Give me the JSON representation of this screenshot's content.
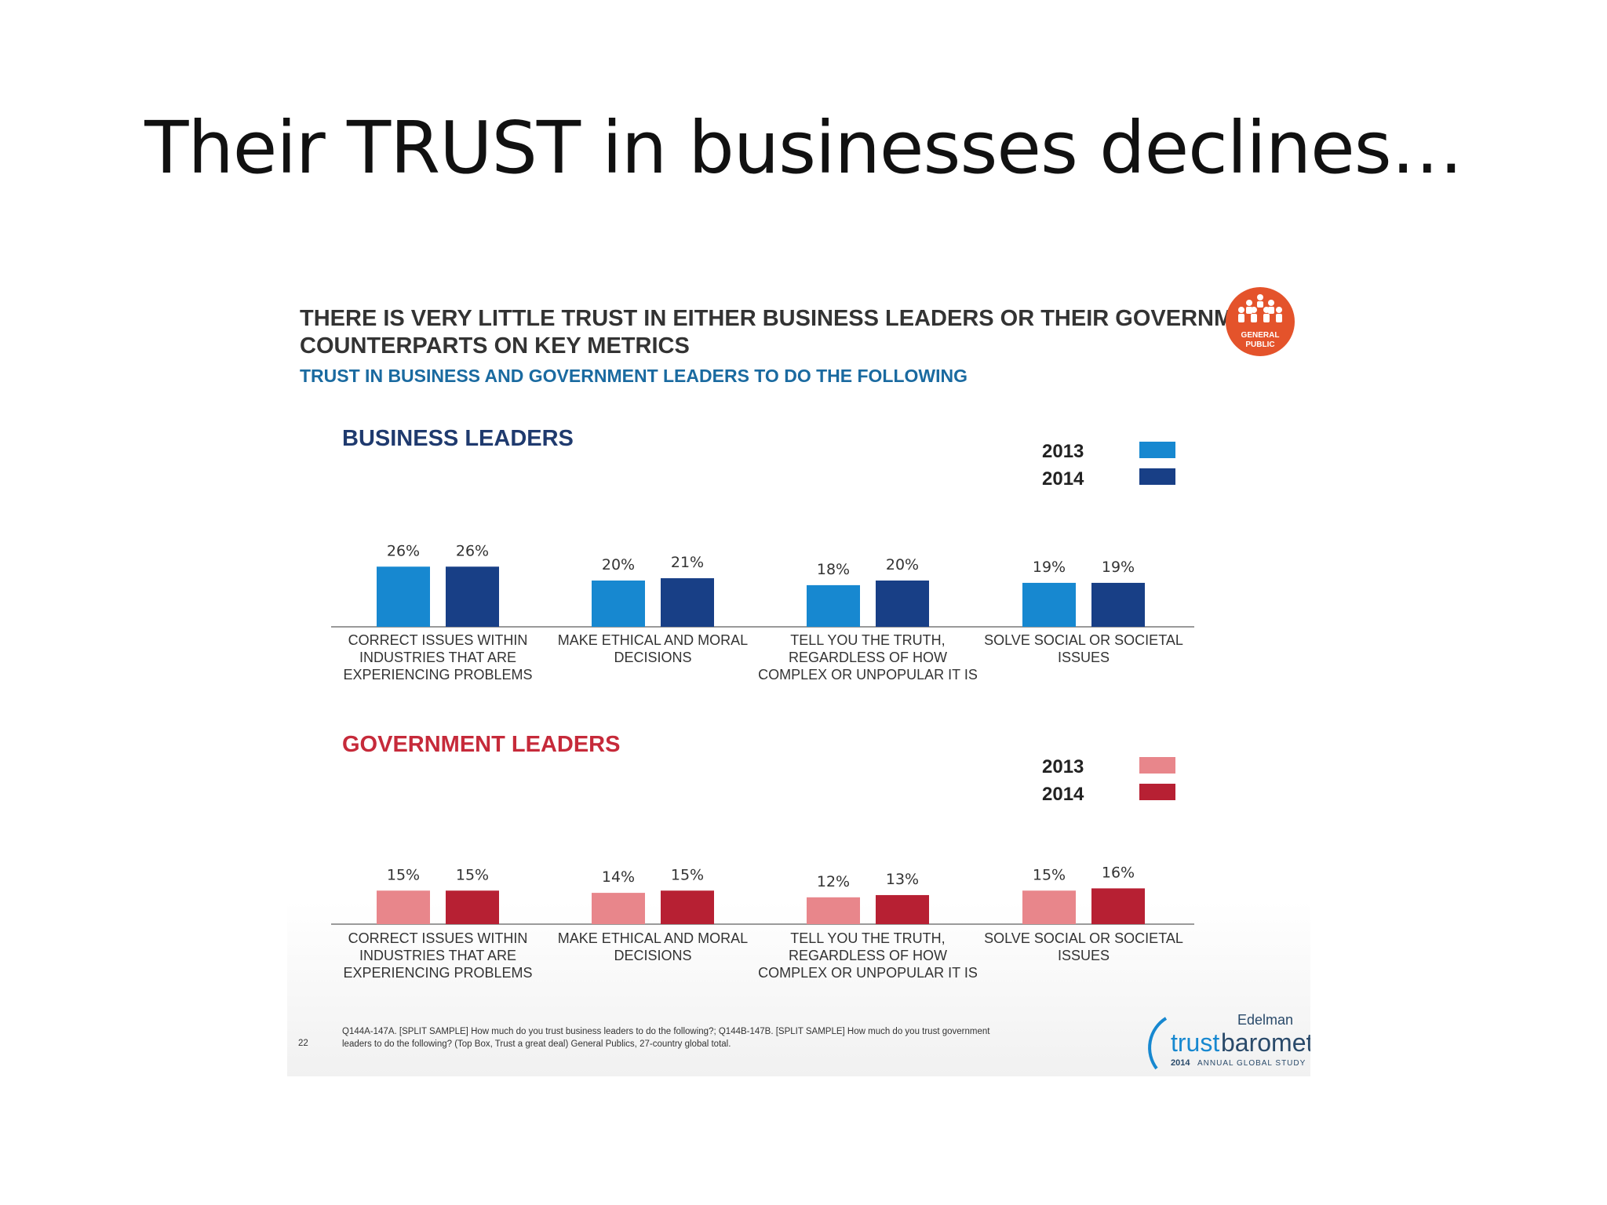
{
  "slide": {
    "title": "Their TRUST in businesses declines…"
  },
  "panel": {
    "headline_line1": "THERE IS VERY LITTLE TRUST IN EITHER BUSINESS LEADERS OR THEIR GOVERNMENT",
    "headline_line2": "COUNTERPARTS ON KEY METRICS",
    "subheadline": "TRUST IN BUSINESS AND GOVERNMENT LEADERS TO DO THE FOLLOWING",
    "badge_line1": "GENERAL",
    "badge_line2": "PUBLIC",
    "page_number": "22",
    "footnote_line1": "Q144A-147A. [SPLIT SAMPLE] How much do you trust business leaders to do the following?; Q144B-147B. [SPLIT SAMPLE] How much do you trust government",
    "footnote_line2": "leaders to do the following? (Top Box, Trust a great deal) General Publics, 27-country global total.",
    "logo_brand": "Edelman",
    "logo_word_1": "trust",
    "logo_word_2": "barometer",
    "logo_year": "2014",
    "logo_tagline": "ANNUAL GLOBAL STUDY"
  },
  "colors": {
    "business_2013": "#1788d0",
    "business_2014": "#183f86",
    "government_2013": "#e8868b",
    "government_2014": "#b72033",
    "business_title": "#1f3a6e",
    "government_title": "#c62a3a",
    "badge": "#e4532b"
  },
  "chart_data": [
    {
      "type": "bar",
      "title": "BUSINESS LEADERS",
      "categories": [
        "CORRECT ISSUES WITHIN INDUSTRIES THAT ARE EXPERIENCING PROBLEMS",
        "MAKE ETHICAL AND MORAL DECISIONS",
        "TELL YOU THE TRUTH, REGARDLESS OF HOW COMPLEX OR UNPOPULAR IT IS",
        "SOLVE SOCIAL OR SOCIETAL ISSUES"
      ],
      "category_lines": [
        [
          "CORRECT ISSUES WITHIN",
          "INDUSTRIES THAT ARE",
          "EXPERIENCING PROBLEMS"
        ],
        [
          "MAKE ETHICAL AND MORAL",
          "DECISIONS"
        ],
        [
          "TELL YOU THE TRUTH,",
          "REGARDLESS OF HOW",
          "COMPLEX OR UNPOPULAR IT IS"
        ],
        [
          "SOLVE SOCIAL OR SOCIETAL",
          "ISSUES"
        ]
      ],
      "series": [
        {
          "name": "2013",
          "values": [
            26,
            20,
            18,
            19
          ],
          "labels": [
            "26%",
            "20%",
            "18%",
            "19%"
          ]
        },
        {
          "name": "2014",
          "values": [
            26,
            21,
            20,
            19
          ],
          "labels": [
            "26%",
            "21%",
            "20%",
            "19%"
          ]
        }
      ],
      "unit": "%",
      "legend_position": "top-right",
      "grid": false
    },
    {
      "type": "bar",
      "title": "GOVERNMENT LEADERS",
      "categories": [
        "CORRECT ISSUES WITHIN INDUSTRIES THAT ARE EXPERIENCING PROBLEMS",
        "MAKE ETHICAL AND MORAL DECISIONS",
        "TELL YOU THE TRUTH, REGARDLESS OF HOW COMPLEX OR UNPOPULAR IT IS",
        "SOLVE SOCIAL OR SOCIETAL ISSUES"
      ],
      "category_lines": [
        [
          "CORRECT ISSUES WITHIN",
          "INDUSTRIES THAT ARE",
          "EXPERIENCING PROBLEMS"
        ],
        [
          "MAKE ETHICAL AND MORAL",
          "DECISIONS"
        ],
        [
          "TELL YOU THE TRUTH,",
          "REGARDLESS OF HOW",
          "COMPLEX OR UNPOPULAR IT IS"
        ],
        [
          "SOLVE SOCIAL OR SOCIETAL",
          "ISSUES"
        ]
      ],
      "series": [
        {
          "name": "2013",
          "values": [
            15,
            14,
            12,
            15
          ],
          "labels": [
            "15%",
            "14%",
            "12%",
            "15%"
          ]
        },
        {
          "name": "2014",
          "values": [
            15,
            15,
            13,
            16
          ],
          "labels": [
            "15%",
            "15%",
            "13%",
            "16%"
          ]
        }
      ],
      "unit": "%",
      "legend_position": "top-right",
      "grid": false
    }
  ]
}
